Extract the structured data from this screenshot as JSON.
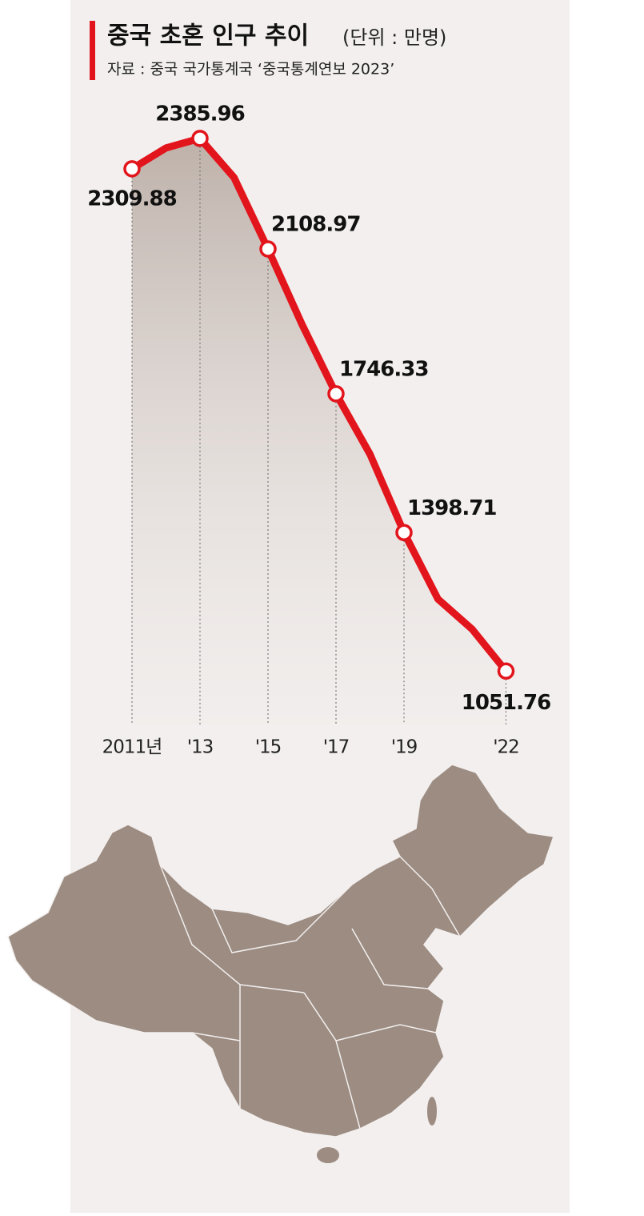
{
  "chart_data": {
    "type": "line",
    "title": "중국 초혼 인구 추이",
    "unit": "(단위 : 만명)",
    "source": "자료 : 중국 국가통계국 ‘중국통계연보 2023’",
    "categories": [
      "2011년",
      null,
      "'13",
      null,
      "'15",
      null,
      "'17",
      null,
      "'19",
      null,
      null,
      "'22"
    ],
    "values": [
      2309.88,
      2362,
      2385.96,
      2288,
      2108.97,
      1920,
      1746.33,
      1595,
      1398.71,
      1232,
      1157,
      1051.76
    ],
    "color": "#e3151c",
    "ylim": [
      900,
      2500
    ]
  }
}
